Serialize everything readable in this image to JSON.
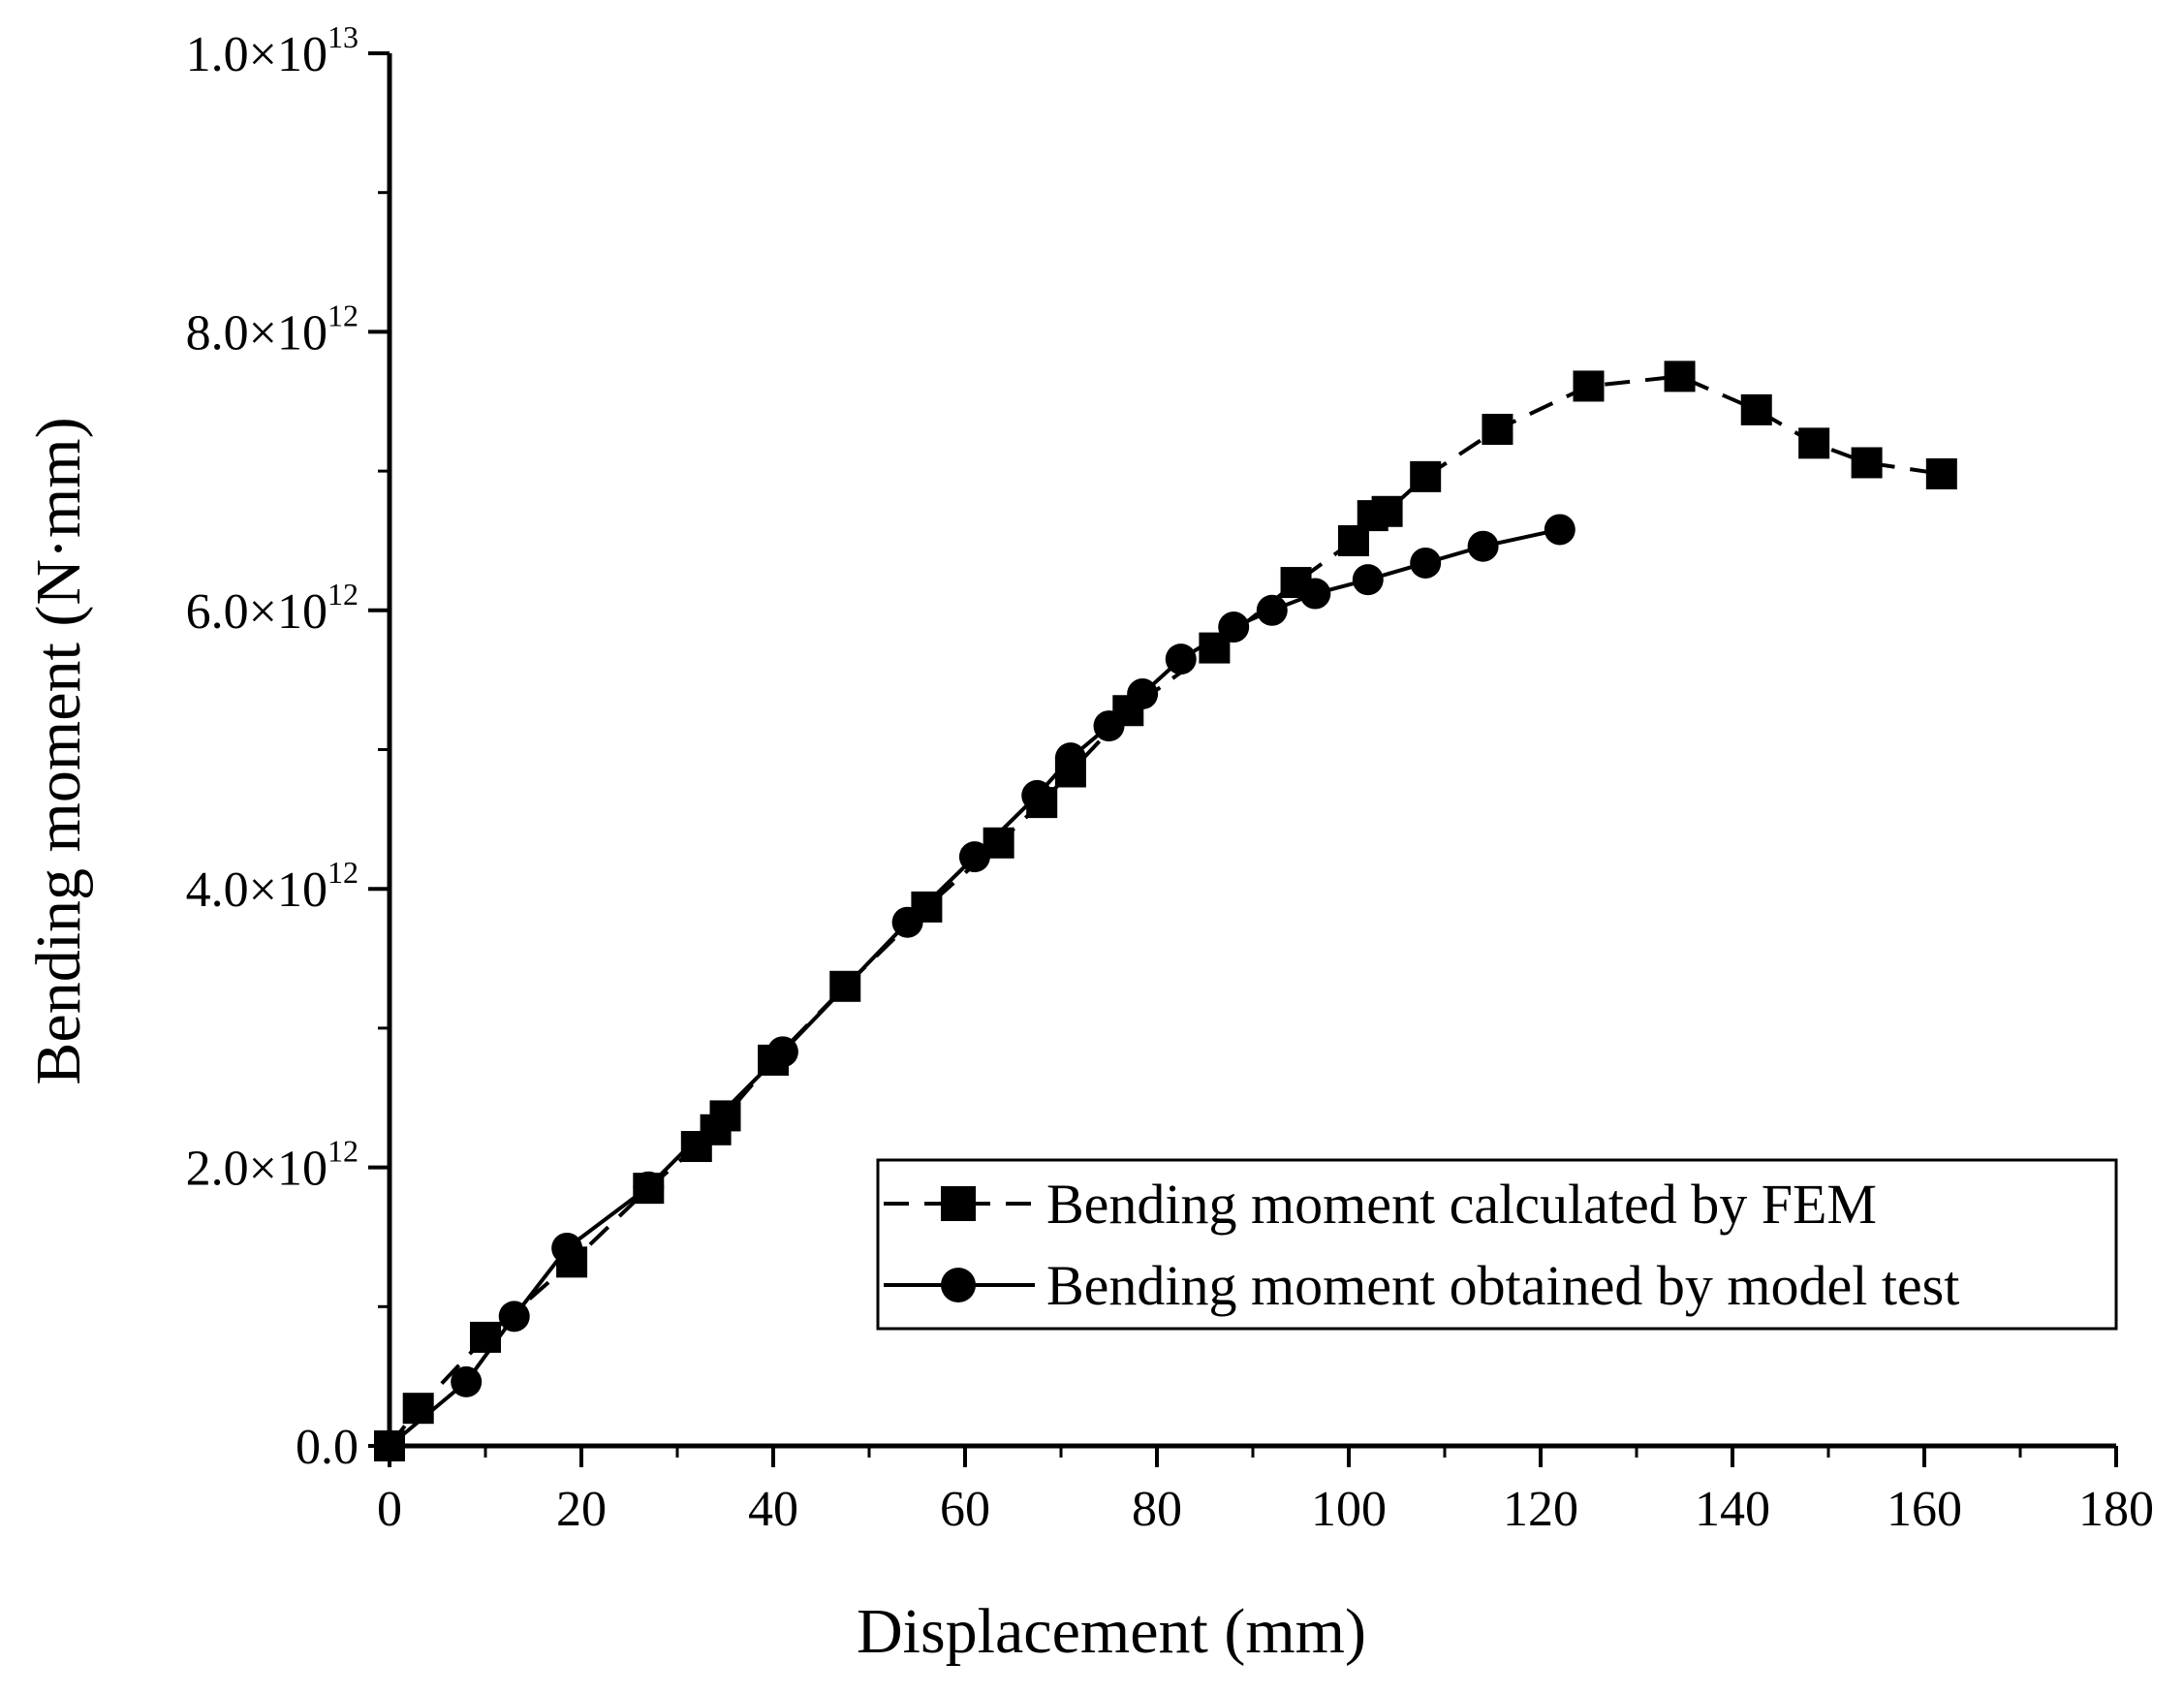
{
  "chart_data": {
    "type": "line",
    "title": "",
    "xlabel": "Displacement (mm)",
    "ylabel": "Bending moment (N·mm)",
    "xlim": [
      0,
      180
    ],
    "ylim": [
      0,
      10000000000000
    ],
    "x_ticks": [
      0,
      20,
      40,
      60,
      80,
      100,
      120,
      140,
      160,
      180
    ],
    "x_tick_labels": [
      "0",
      "20",
      "40",
      "60",
      "80",
      "100",
      "120",
      "140",
      "160",
      "180"
    ],
    "y_ticks": [
      {
        "value": 0,
        "mantissa": "0.0",
        "exponent": ""
      },
      {
        "value": 2000000000000,
        "mantissa": "2.0×10",
        "exponent": "12"
      },
      {
        "value": 4000000000000,
        "mantissa": "4.0×10",
        "exponent": "12"
      },
      {
        "value": 6000000000000,
        "mantissa": "6.0×10",
        "exponent": "12"
      },
      {
        "value": 8000000000000,
        "mantissa": "8.0×10",
        "exponent": "12"
      },
      {
        "value": 10000000000000,
        "mantissa": "1.0×10",
        "exponent": "13"
      }
    ],
    "grid": false,
    "legend_position": "bottom-right",
    "series": [
      {
        "name": "Bending moment calculated by FEM",
        "marker": "square",
        "line": "dashed",
        "color": "#000000",
        "x": [
          0,
          3,
          10,
          19,
          27,
          32,
          34,
          35,
          40,
          47.5,
          56,
          63.5,
          68,
          71,
          77,
          86,
          94.5,
          100.5,
          102.5,
          104,
          108,
          115.5,
          125,
          134.5,
          142.5,
          148.5,
          154,
          161.8
        ],
        "y": [
          0,
          270000000000,
          780000000000,
          1320000000000,
          1850000000000,
          2150000000000,
          2270000000000,
          2370000000000,
          2770000000000,
          3300000000000,
          3870000000000,
          4330000000000,
          4620000000000,
          4840000000000,
          5280000000000,
          5730000000000,
          6200000000000,
          6500000000000,
          6680000000000,
          6710000000000,
          6960000000000,
          7300000000000,
          7610000000000,
          7680000000000,
          7440000000000,
          7200000000000,
          7060000000000,
          6980000000000
        ]
      },
      {
        "name": "Bending moment obtained by model test",
        "marker": "circle",
        "line": "solid",
        "color": "#000000",
        "x": [
          0,
          8,
          13,
          18.5,
          27,
          41,
          54,
          61,
          67.5,
          71,
          75,
          78.5,
          82.5,
          88,
          92,
          96.5,
          102,
          108,
          114,
          122
        ],
        "y": [
          0,
          460000000000,
          930000000000,
          1420000000000,
          1860000000000,
          2830000000000,
          3760000000000,
          4230000000000,
          4670000000000,
          4940000000000,
          5170000000000,
          5400000000000,
          5650000000000,
          5880000000000,
          6000000000000,
          6120000000000,
          6220000000000,
          6340000000000,
          6460000000000,
          6580000000000
        ]
      }
    ]
  }
}
